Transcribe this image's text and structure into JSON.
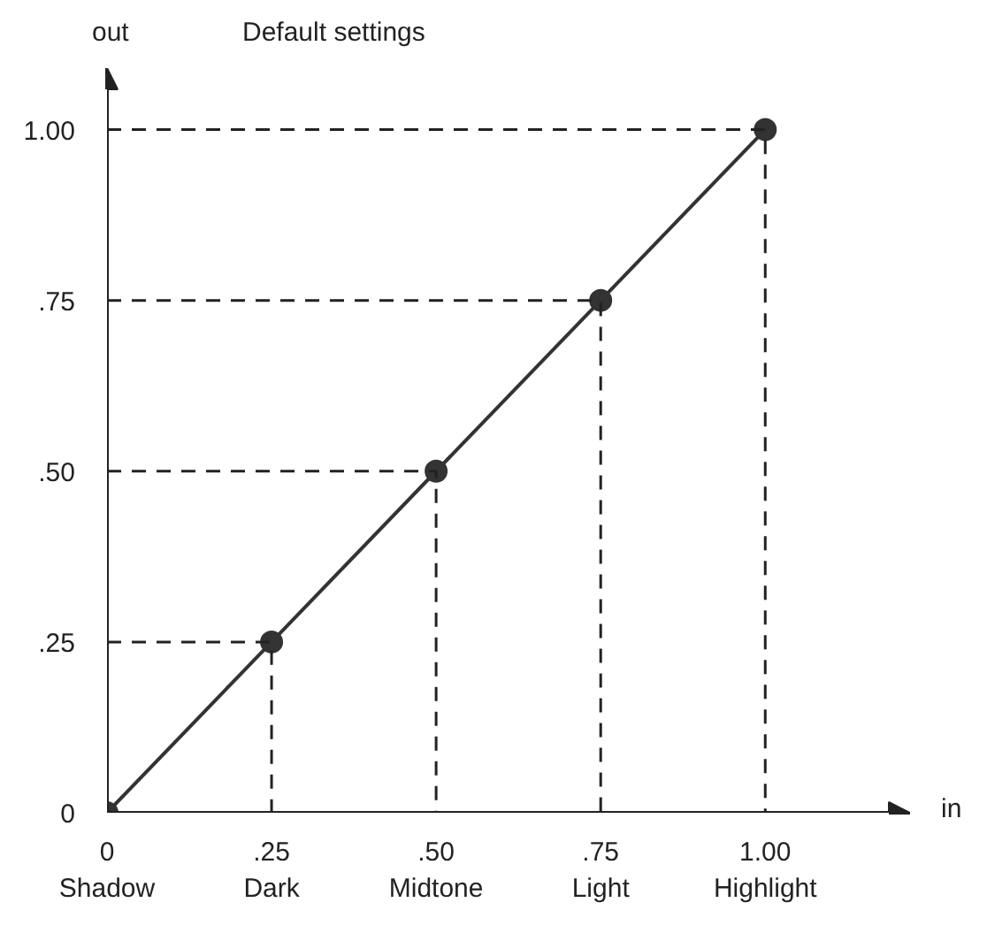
{
  "chart_data": {
    "type": "line",
    "title": "Default settings",
    "xlabel": "in",
    "ylabel": "out",
    "x": [
      0,
      0.25,
      0.5,
      0.75,
      1.0
    ],
    "series": [
      {
        "color": "#333333",
        "values": [
          0,
          0.25,
          0.5,
          0.75,
          1.0
        ],
        "marker": "circle",
        "line_style": "solid"
      },
      {
        "color": "#222222",
        "x": [
          0,
          0.25,
          0.25
        ],
        "values": [
          0.25,
          0.25,
          0
        ],
        "marker": "none",
        "line_style": "dashed"
      },
      {
        "color": "#222222",
        "x": [
          0,
          0.5,
          0.5
        ],
        "values": [
          0.5,
          0.5,
          0
        ],
        "marker": "none",
        "line_style": "dashed"
      },
      {
        "color": "#222222",
        "x": [
          0,
          0.75,
          0.75
        ],
        "values": [
          0.75,
          0.75,
          0
        ],
        "marker": "none",
        "line_style": "dashed"
      },
      {
        "color": "#222222",
        "x": [
          0,
          1.0,
          1.0
        ],
        "values": [
          1.0,
          1.0,
          0
        ],
        "marker": "none",
        "line_style": "dashed"
      }
    ],
    "xlim": [
      0,
      1.22
    ],
    "ylim": [
      0,
      1.09
    ],
    "xticks": [
      {
        "value": 0,
        "label": "0\nShadow"
      },
      {
        "value": 0.25,
        "label": ".25\nDark"
      },
      {
        "value": 0.5,
        "label": ".50\nMidtone"
      },
      {
        "value": 0.75,
        "label": ".75\nLight"
      },
      {
        "value": 1.0,
        "label": "1.00\nHighlight"
      }
    ],
    "yticks": [
      0,
      {
        "value": 0.25,
        "label": ".25"
      },
      {
        "value": 0.5,
        "label": ".50"
      },
      {
        "value": 0.75,
        "label": ".75"
      },
      {
        "value": 1.0,
        "label": "1.00"
      }
    ]
  }
}
